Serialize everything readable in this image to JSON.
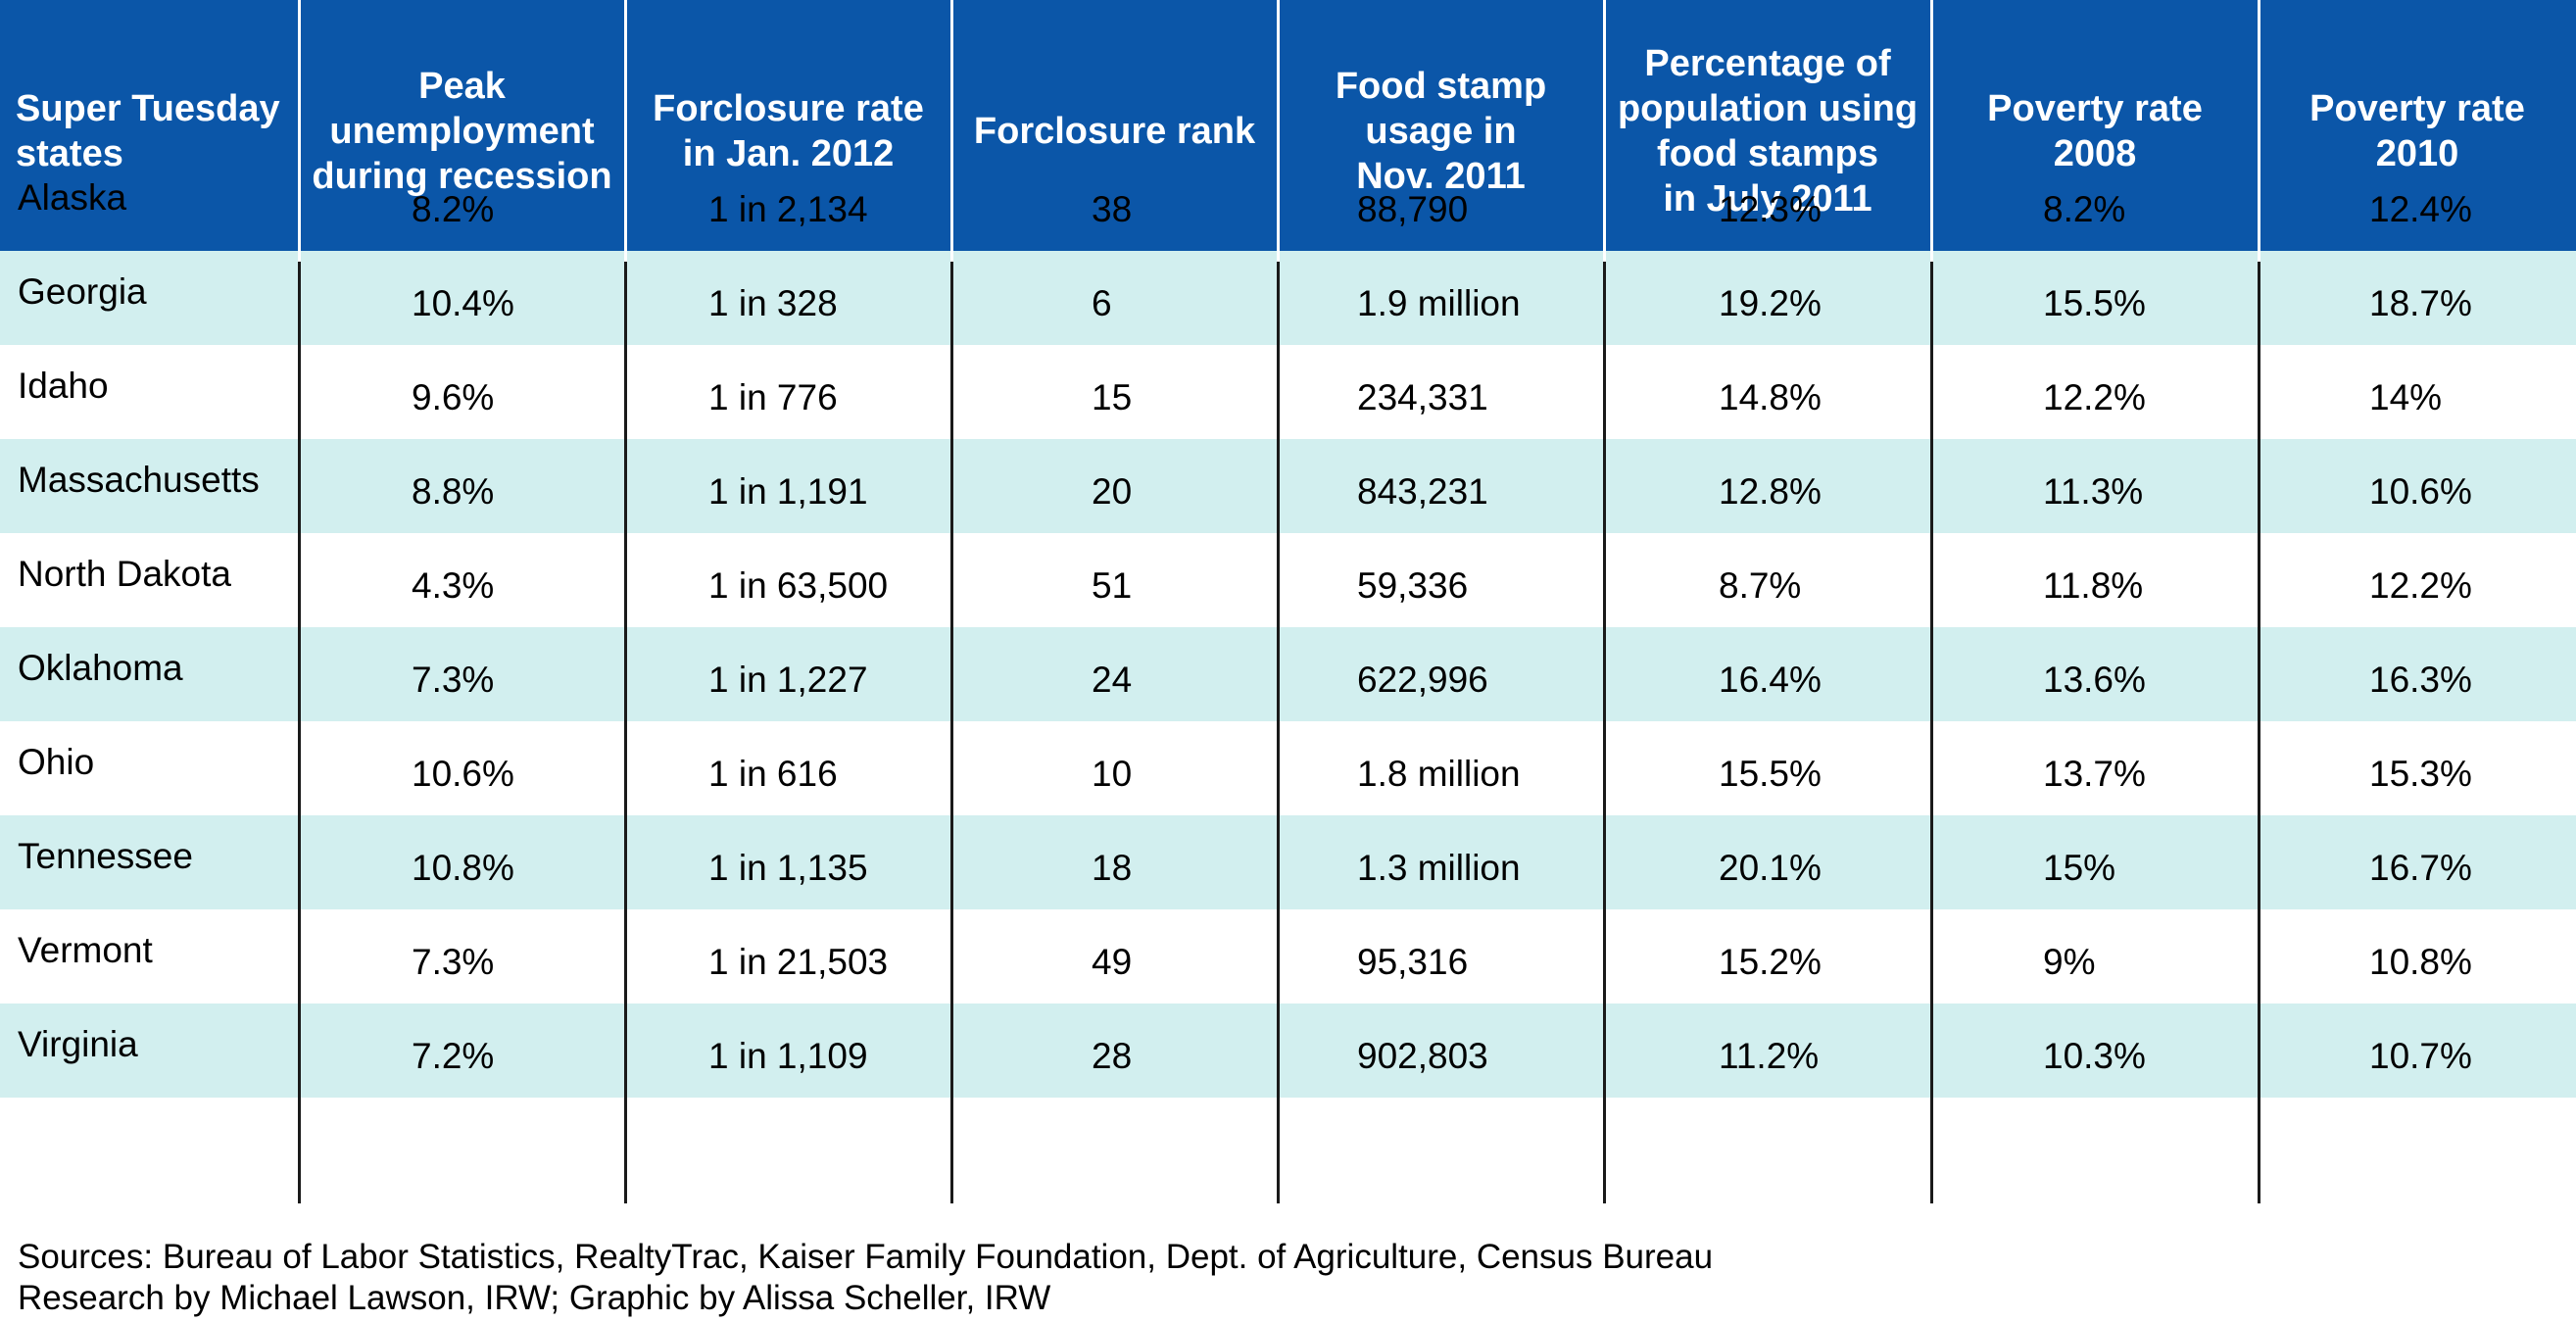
{
  "chart_data": {
    "type": "table",
    "columns": [
      "Super Tuesday\nstates",
      "Peak\nunemployment\nduring recession",
      "Forclosure rate\nin Jan. 2012",
      "Forclosure rank",
      "Food stamp\nusage in\nNov. 2011",
      "Percentage of\npopulation using\nfood stamps\nin July 2011",
      "Poverty rate\n2008",
      "Poverty rate\n2010"
    ],
    "rows": [
      [
        "Alaska",
        "8.2%",
        "1 in 2,134",
        "38",
        "88,790",
        "12.3%",
        "8.2%",
        "12.4%"
      ],
      [
        "Georgia",
        "10.4%",
        "1 in 328",
        "6",
        "1.9 million",
        "19.2%",
        "15.5%",
        "18.7%"
      ],
      [
        "Idaho",
        "9.6%",
        "1 in 776",
        "15",
        "234,331",
        "14.8%",
        "12.2%",
        "14%"
      ],
      [
        "Massachusetts",
        "8.8%",
        "1 in 1,191",
        "20",
        "843,231",
        "12.8%",
        "11.3%",
        "10.6%"
      ],
      [
        "North Dakota",
        "4.3%",
        "1 in 63,500",
        "51",
        "59,336",
        "8.7%",
        "11.8%",
        "12.2%"
      ],
      [
        "Oklahoma",
        "7.3%",
        "1 in 1,227",
        "24",
        "622,996",
        "16.4%",
        "13.6%",
        "16.3%"
      ],
      [
        "Ohio",
        "10.6%",
        "1 in 616",
        "10",
        "1.8 million",
        "15.5%",
        "13.7%",
        "15.3%"
      ],
      [
        "Tennessee",
        "10.8%",
        "1 in 1,135",
        "18",
        "1.3 million",
        "20.1%",
        "15%",
        "16.7%"
      ],
      [
        "Vermont",
        "7.3%",
        "1 in 21,503",
        "49",
        "95,316",
        "15.2%",
        "9%",
        "10.8%"
      ],
      [
        "Virginia",
        "7.2%",
        "1 in 1,109",
        "28",
        "902,803",
        "11.2%",
        "10.3%",
        "10.7%"
      ]
    ]
  },
  "colors": {
    "header_background": "#0b56a8",
    "header_text": "#ffffff",
    "alternate_row": "#d2efef",
    "column_rule": "#1a1a1a"
  },
  "footer": {
    "sources": "Sources: Bureau of Labor Statistics, RealtyTrac, Kaiser Family Foundation, Dept. of Agriculture, Census Bureau",
    "credits": "Research by Michael Lawson, IRW; Graphic by Alissa Scheller, IRW"
  }
}
